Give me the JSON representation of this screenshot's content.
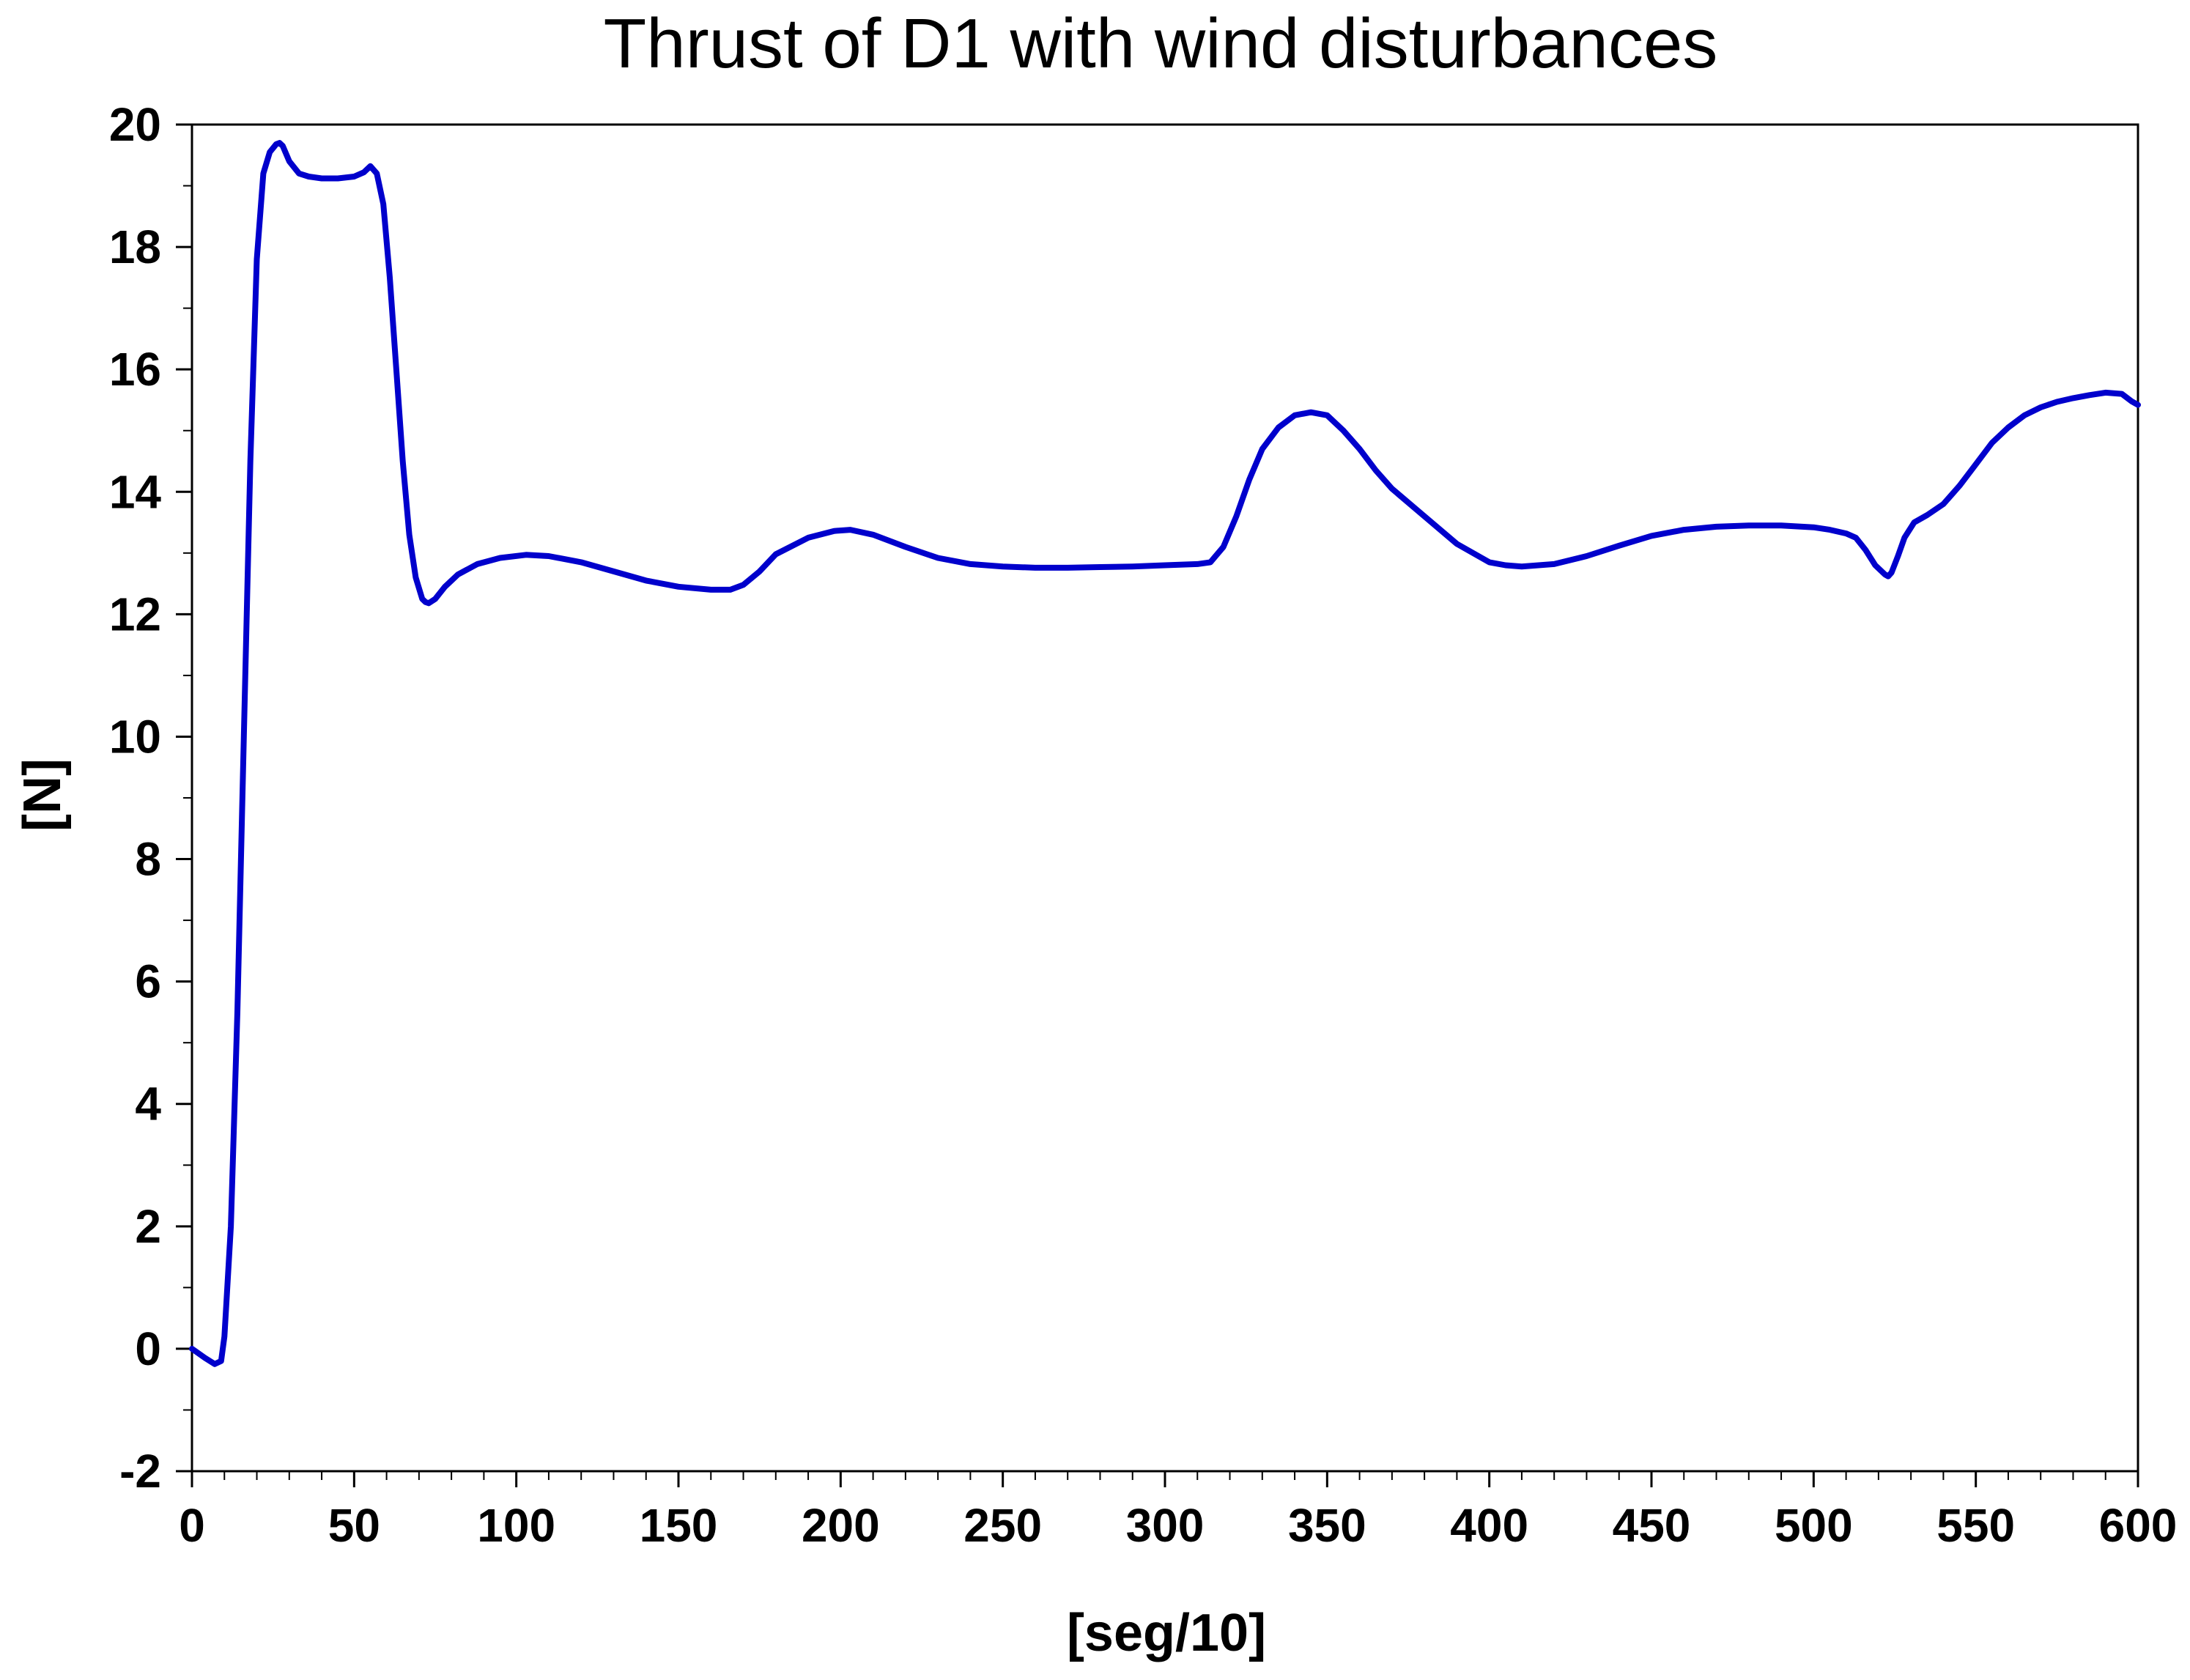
{
  "chart_data": {
    "type": "line",
    "title": "Thrust of D1 with wind disturbances",
    "xlabel": "[seg/10]",
    "ylabel": "[N]",
    "xlim": [
      0,
      600
    ],
    "ylim": [
      -2,
      20
    ],
    "xticks": [
      0,
      50,
      100,
      150,
      200,
      250,
      300,
      350,
      400,
      450,
      500,
      550,
      600
    ],
    "yticks": [
      -2,
      0,
      2,
      4,
      6,
      8,
      10,
      12,
      14,
      16,
      18,
      20
    ],
    "grid": false,
    "line_color": "#0000cc",
    "series": [
      {
        "x": [
          0,
          4,
          7,
          9,
          10,
          12,
          14,
          16,
          18,
          20,
          22,
          24,
          26,
          27,
          28,
          30,
          33,
          36,
          40,
          45,
          50,
          53,
          55,
          57,
          59,
          61,
          63,
          65,
          67,
          69,
          71,
          72,
          73,
          75,
          78,
          82,
          88,
          95,
          103,
          110,
          120,
          130,
          140,
          150,
          160,
          166,
          170,
          175,
          180,
          190,
          198,
          203,
          210,
          220,
          230,
          240,
          250,
          260,
          270,
          280,
          290,
          300,
          310,
          314,
          318,
          322,
          326,
          330,
          335,
          340,
          345,
          350,
          355,
          360,
          365,
          370,
          380,
          390,
          400,
          405,
          410,
          420,
          430,
          440,
          450,
          460,
          470,
          480,
          490,
          500,
          505,
          510,
          513,
          516,
          519,
          522,
          523,
          524,
          526,
          528,
          531,
          535,
          540,
          545,
          550,
          555,
          560,
          565,
          570,
          575,
          580,
          585,
          590,
          595,
          598,
          600
        ],
        "y": [
          0.0,
          -0.15,
          -0.25,
          -0.2,
          0.2,
          2.0,
          5.5,
          10.0,
          14.5,
          17.8,
          19.2,
          19.55,
          19.68,
          19.7,
          19.65,
          19.4,
          19.2,
          19.15,
          19.12,
          19.12,
          19.15,
          19.22,
          19.32,
          19.2,
          18.7,
          17.5,
          16.0,
          14.5,
          13.3,
          12.6,
          12.25,
          12.2,
          12.18,
          12.25,
          12.45,
          12.65,
          12.82,
          12.92,
          12.97,
          12.95,
          12.85,
          12.7,
          12.55,
          12.45,
          12.4,
          12.4,
          12.48,
          12.7,
          12.98,
          13.25,
          13.36,
          13.38,
          13.3,
          13.1,
          12.92,
          12.82,
          12.78,
          12.76,
          12.76,
          12.77,
          12.78,
          12.8,
          12.82,
          12.85,
          13.1,
          13.6,
          14.2,
          14.7,
          15.05,
          15.25,
          15.3,
          15.25,
          15.0,
          14.7,
          14.35,
          14.05,
          13.6,
          13.15,
          12.85,
          12.8,
          12.78,
          12.82,
          12.95,
          13.12,
          13.28,
          13.38,
          13.43,
          13.45,
          13.45,
          13.42,
          13.38,
          13.32,
          13.25,
          13.05,
          12.8,
          12.65,
          12.62,
          12.68,
          12.95,
          13.25,
          13.5,
          13.62,
          13.8,
          14.1,
          14.45,
          14.8,
          15.05,
          15.25,
          15.38,
          15.47,
          15.53,
          15.58,
          15.62,
          15.6,
          15.48,
          15.42
        ]
      }
    ]
  }
}
